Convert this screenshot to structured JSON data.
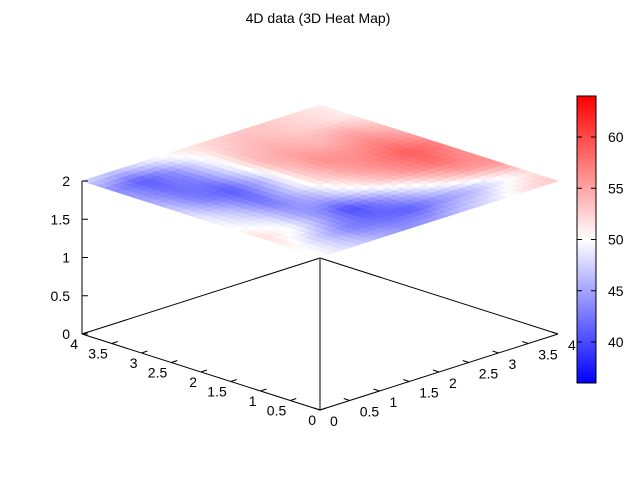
{
  "chart_data": {
    "type": "heatmap",
    "title": "4D data (3D Heat Map)",
    "surface_z": 2,
    "x_ticks": [
      "0",
      "0.5",
      "1",
      "1.5",
      "2",
      "2.5",
      "3",
      "3.5",
      "4"
    ],
    "y_ticks": [
      "0",
      "0.5",
      "1",
      "1.5",
      "2",
      "2.5",
      "3",
      "3.5",
      "4"
    ],
    "z_ticks": [
      "0",
      "0.5",
      "1",
      "1.5",
      "2"
    ],
    "xlim": [
      0,
      4
    ],
    "ylim": [
      0,
      4
    ],
    "zlim": [
      0,
      2
    ],
    "colorbar": {
      "range": [
        36,
        64
      ],
      "ticks": [
        "40",
        "45",
        "50",
        "55",
        "60"
      ],
      "low_color": "#0000ff",
      "mid_color": "#ffffff",
      "high_color": "#ff0000"
    },
    "grid_axis_values": [
      0,
      0.5,
      1,
      1.5,
      2,
      2.5,
      3,
      3.5,
      4
    ],
    "values": [
      [
        50,
        48,
        46,
        44,
        45,
        47,
        49,
        52,
        53
      ],
      [
        51,
        47,
        43,
        42,
        41,
        44,
        46,
        49,
        52
      ],
      [
        52,
        50,
        45,
        40,
        44,
        48,
        52,
        55,
        56
      ],
      [
        50,
        48,
        44,
        45,
        49,
        53,
        56,
        58,
        56
      ],
      [
        49,
        46,
        42,
        47,
        52,
        55,
        57,
        59,
        57
      ],
      [
        47,
        43,
        41,
        46,
        53,
        56,
        56,
        57,
        55
      ],
      [
        45,
        42,
        43,
        48,
        54,
        55,
        54,
        55,
        53
      ],
      [
        44,
        41,
        44,
        49,
        53,
        54,
        53,
        52,
        51
      ],
      [
        48,
        47,
        49,
        51,
        52,
        53,
        53,
        52,
        51
      ]
    ]
  }
}
